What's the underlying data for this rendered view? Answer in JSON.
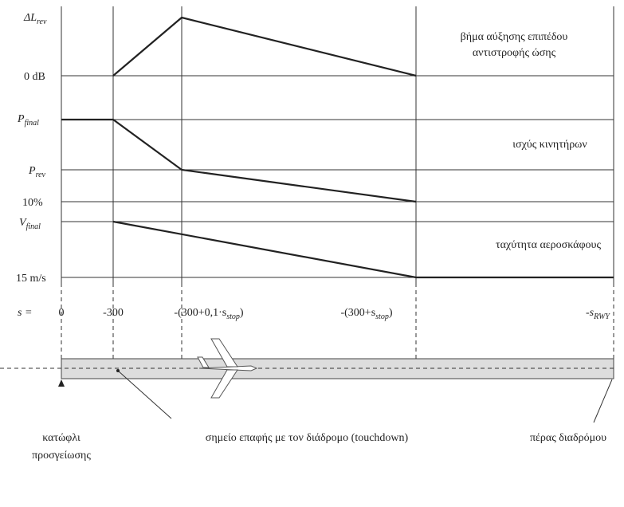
{
  "panels": [
    {
      "top_label": {
        "pre": "ΔL",
        "sub": "rev"
      },
      "bottom_label": "0 dB",
      "title": [
        "βήμα αύξησης επιπέδου",
        "αντιστροφής ώσης"
      ]
    },
    {
      "top_label": {
        "pre": "P",
        "sub": "final"
      },
      "mid_label": {
        "pre": "P",
        "sub": "rev"
      },
      "bottom_label": "10%",
      "title": [
        "ισχύς κινητήρων"
      ]
    },
    {
      "top_label": {
        "pre": "V",
        "sub": "final"
      },
      "bottom_label": "15 m/s",
      "title": [
        "ταχύτητα αεροσκάφους"
      ]
    }
  ],
  "x_axis": {
    "prefix": "s =",
    "labels": [
      {
        "pre": "0"
      },
      {
        "pre": "-300"
      },
      {
        "pre": "-(300+0,1·s",
        "sub": "stop",
        "post": ")"
      },
      {
        "pre": "-(300+s",
        "sub": "stop",
        "post": ")"
      },
      {
        "pre": "-s",
        "sub": "RWY"
      }
    ]
  },
  "runway": {
    "threshold": [
      "κατώφλι",
      "προσγείωσης"
    ],
    "touchdown": "σημείο επαφής με τον διάδρομο (touchdown)",
    "end": "πέρας διαδρόμου"
  }
}
